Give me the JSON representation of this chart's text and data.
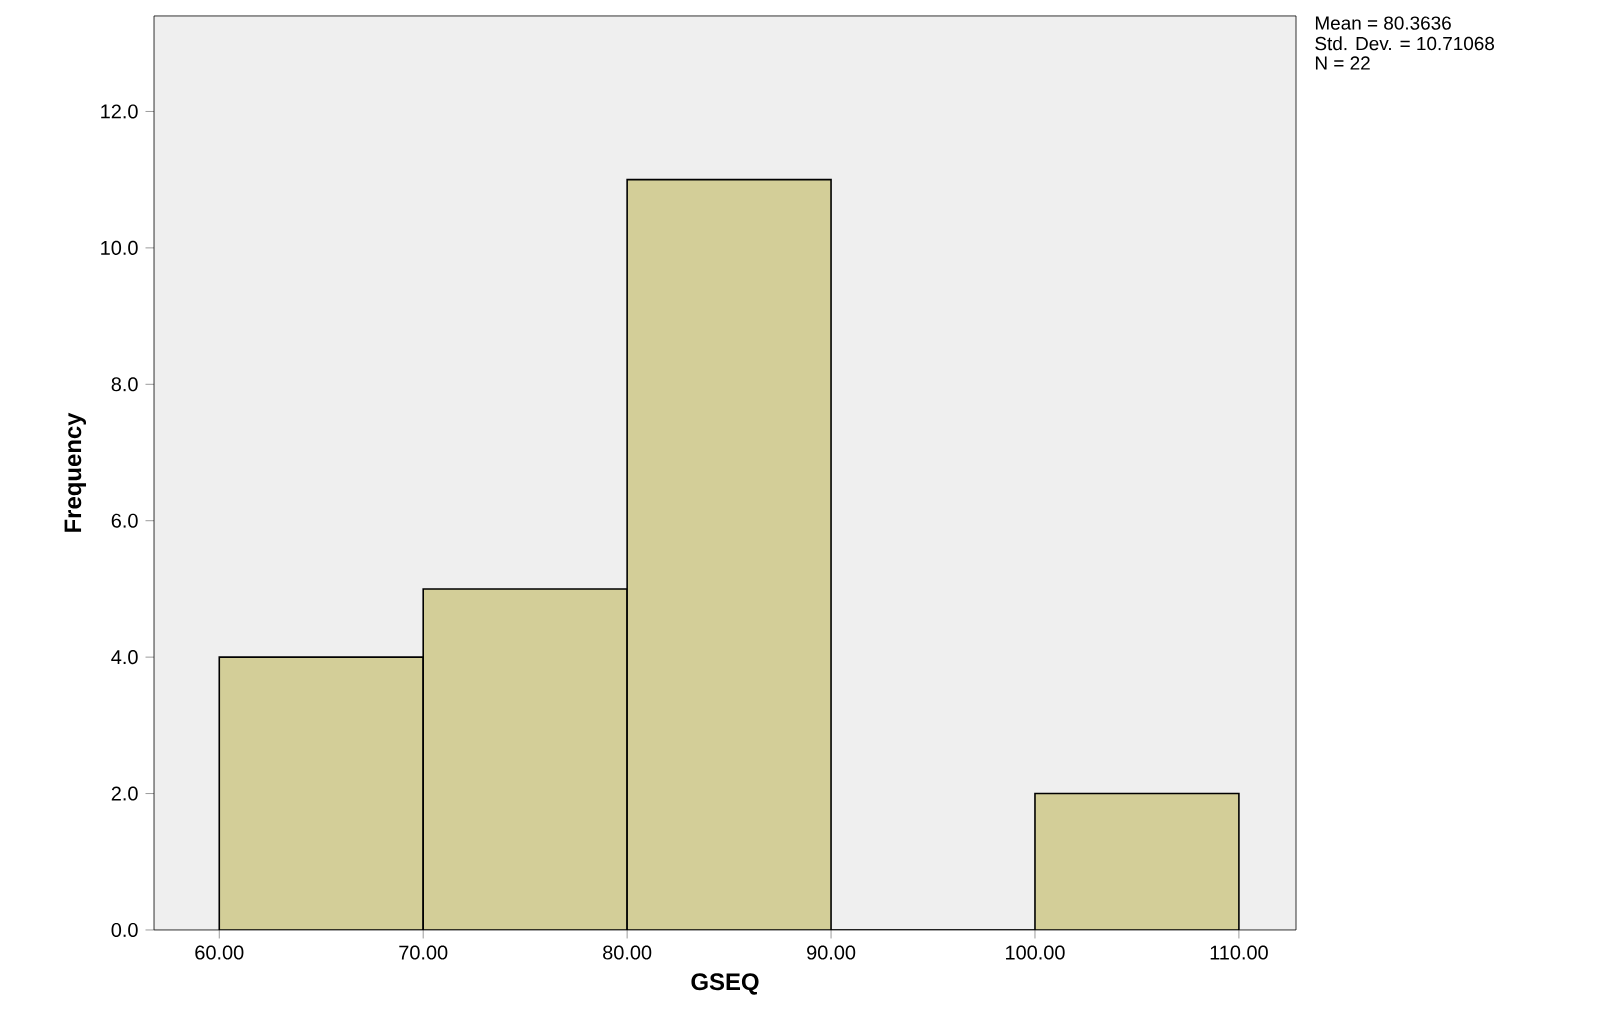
{
  "chart_data": {
    "type": "histogram",
    "xlabel": "GSEQ",
    "ylabel": "Frequency",
    "bins": [
      60,
      70,
      80,
      90,
      100,
      110
    ],
    "values": [
      4,
      5,
      11,
      0,
      2
    ],
    "color": "#d3ce98",
    "xlim": [
      56.8,
      112.8
    ],
    "ylim": [
      0,
      13.4
    ],
    "xticks": [
      {
        "value": 60,
        "label": "60.00"
      },
      {
        "value": 70,
        "label": "70.00"
      },
      {
        "value": 80,
        "label": "80.00"
      },
      {
        "value": 90,
        "label": "90.00"
      },
      {
        "value": 100,
        "label": "100.00"
      },
      {
        "value": 110,
        "label": "110.00"
      }
    ],
    "yticks": [
      {
        "value": 0,
        "label": "0.0"
      },
      {
        "value": 2,
        "label": "2.0"
      },
      {
        "value": 4,
        "label": "4.0"
      },
      {
        "value": 6,
        "label": "6.0"
      },
      {
        "value": 8,
        "label": "8.0"
      },
      {
        "value": 10,
        "label": "10.0"
      },
      {
        "value": 12,
        "label": "12.0"
      }
    ],
    "annotations": [
      "Mean = 80.3636",
      "Std. Dev. = 10.71068",
      "N = 22"
    ]
  }
}
